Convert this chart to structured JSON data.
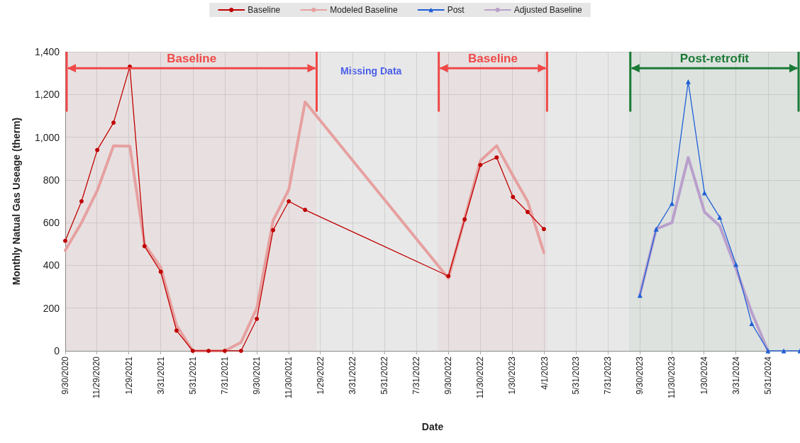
{
  "chart_data": {
    "type": "line",
    "xlabel": "Date",
    "ylabel": "Monthly Natual Gas Useage (therm)",
    "xlim": [
      "2020-09-30",
      "2024-07-31"
    ],
    "xticks": [
      {
        "value": "2020-09-30",
        "label": "9/30/2020"
      },
      {
        "value": "2020-11-29",
        "label": "11/29/2020"
      },
      {
        "value": "2021-01-29",
        "label": "1/29/2021"
      },
      {
        "value": "2021-03-31",
        "label": "3/31/2021"
      },
      {
        "value": "2021-05-31",
        "label": "5/31/2021"
      },
      {
        "value": "2021-07-31",
        "label": "7/31/2021"
      },
      {
        "value": "2021-09-30",
        "label": "9/30/2021"
      },
      {
        "value": "2021-11-30",
        "label": "11/30/2021"
      },
      {
        "value": "2022-01-29",
        "label": "1/29/2022"
      },
      {
        "value": "2022-03-31",
        "label": "3/31/2022"
      },
      {
        "value": "2022-05-31",
        "label": "5/31/2022"
      },
      {
        "value": "2022-07-31",
        "label": "7/31/2022"
      },
      {
        "value": "2022-09-30",
        "label": "9/30/2022"
      },
      {
        "value": "2022-11-30",
        "label": "11/30/2022"
      },
      {
        "value": "2023-01-30",
        "label": "1/30/2023"
      },
      {
        "value": "2023-04-01",
        "label": "4/1/2023"
      },
      {
        "value": "2023-05-31",
        "label": "5/31/2023"
      },
      {
        "value": "2023-07-31",
        "label": "7/31/2023"
      },
      {
        "value": "2023-09-30",
        "label": "9/30/2023"
      },
      {
        "value": "2023-11-30",
        "label": "11/30/2023"
      },
      {
        "value": "2024-01-30",
        "label": "1/30/2024"
      },
      {
        "value": "2024-03-31",
        "label": "3/31/2024"
      },
      {
        "value": "2024-05-31",
        "label": "5/31/2024"
      }
    ],
    "ylim": [
      0,
      1400
    ],
    "yticks": [
      0,
      200,
      400,
      600,
      800,
      {
        "value": 1000,
        "label": "1,000"
      },
      {
        "value": 1200,
        "label": "1,200"
      },
      {
        "value": 1400,
        "label": "1,400"
      }
    ],
    "grid": true,
    "legend": "top",
    "series": [
      {
        "name": "Baseline",
        "color": "#c00000",
        "marker": "circle",
        "x": [
          "2020-09-30",
          "2020-10-31",
          "2020-11-30",
          "2020-12-31",
          "2021-01-31",
          "2021-02-28",
          "2021-03-31",
          "2021-04-30",
          "2021-05-31",
          "2021-06-30",
          "2021-07-31",
          "2021-08-31",
          "2021-09-30",
          "2021-10-31",
          "2021-11-30",
          "2021-12-31",
          "2022-09-30",
          "2022-10-31",
          "2022-11-30",
          "2022-12-31",
          "2023-01-31",
          "2023-02-28",
          "2023-03-31"
        ],
        "values": [
          515,
          700,
          940,
          1068,
          1330,
          490,
          370,
          95,
          0,
          0,
          0,
          0,
          150,
          565,
          700,
          660,
          350,
          615,
          870,
          905,
          720,
          650,
          570
        ]
      },
      {
        "name": "Modeled Baseline",
        "color": "#e6a0a0",
        "marker": "none",
        "x": [
          "2020-09-30",
          "2020-10-31",
          "2020-11-30",
          "2020-12-31",
          "2021-01-31",
          "2021-02-28",
          "2021-03-31",
          "2021-04-30",
          "2021-05-31",
          "2021-06-30",
          "2021-07-31",
          "2021-08-31",
          "2021-09-30",
          "2021-10-31",
          "2021-11-30",
          "2021-12-31",
          "2022-09-30",
          "2022-10-31",
          "2022-11-30",
          "2022-12-31",
          "2023-01-31",
          "2023-02-28",
          "2023-03-31"
        ],
        "values": [
          470,
          600,
          750,
          960,
          958,
          500,
          390,
          120,
          0,
          0,
          0,
          40,
          200,
          610,
          755,
          1165,
          340,
          620,
          890,
          960,
          820,
          700,
          460
        ]
      },
      {
        "name": "Post",
        "color": "#1f5fd6",
        "marker": "triangle",
        "x": [
          "2023-09-30",
          "2023-10-31",
          "2023-11-30",
          "2023-12-31",
          "2024-01-31",
          "2024-02-29",
          "2024-03-31",
          "2024-04-30",
          "2024-05-31",
          "2024-06-30",
          "2024-07-31"
        ],
        "values": [
          260,
          570,
          690,
          1260,
          740,
          625,
          405,
          128,
          0,
          0,
          0
        ]
      },
      {
        "name": "Adjusted Baseline",
        "color": "#b9a0cc",
        "marker": "none",
        "x": [
          "2023-09-30",
          "2023-10-31",
          "2023-11-30",
          "2023-12-31",
          "2024-01-31",
          "2024-02-29",
          "2024-03-31",
          "2024-04-30",
          "2024-05-31"
        ],
        "values": [
          265,
          570,
          600,
          905,
          650,
          585,
          385,
          180,
          0
        ]
      }
    ],
    "bands": [
      {
        "axis": "x",
        "from": "2020-09-30",
        "to": "2022-01-22",
        "label": "Baseline",
        "color": "#f04848"
      },
      {
        "axis": "x",
        "from": "2022-09-09",
        "to": "2023-04-06",
        "label": "Baseline",
        "color": "#f04848"
      },
      {
        "axis": "x",
        "from": "2023-09-09",
        "to": "2024-07-31",
        "label": "Post-retrofit",
        "color": "#1a7a36"
      }
    ],
    "annotations": [
      "Missing Data"
    ]
  }
}
